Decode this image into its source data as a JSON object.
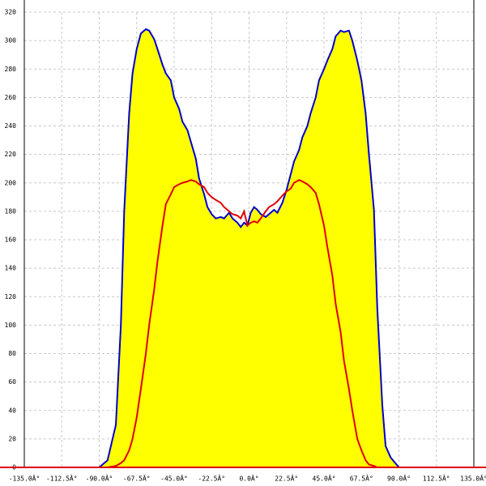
{
  "chart_data": {
    "type": "area-line",
    "x": [
      -90,
      -85,
      -80,
      -77,
      -75,
      -72,
      -70,
      -67.5,
      -65,
      -62,
      -60,
      -57,
      -55,
      -52,
      -50,
      -47,
      -45,
      -42,
      -40,
      -37,
      -35,
      -32,
      -30,
      -27,
      -25,
      -22.5,
      -20,
      -17,
      -15,
      -12,
      -10,
      -7,
      -5,
      -3,
      -1,
      1,
      3,
      5,
      7,
      10,
      12,
      15,
      17,
      20,
      22.5,
      25,
      27,
      30,
      32,
      35,
      37,
      40,
      42,
      45,
      47,
      50,
      52,
      55,
      57,
      60,
      62,
      65,
      67.5,
      70,
      72,
      75,
      77,
      80,
      82,
      85,
      90
    ],
    "series": [
      {
        "color": "#0000cc",
        "fill": "#ffff00",
        "values": [
          0,
          5,
          30,
          100,
          180,
          249,
          277,
          294,
          305,
          308,
          307,
          301,
          294,
          283,
          277,
          272,
          260,
          252,
          243,
          237,
          229,
          217,
          203,
          192,
          183,
          178,
          175,
          176,
          175,
          179,
          175,
          172,
          169,
          172,
          170,
          179,
          183,
          181,
          178,
          176,
          178,
          181,
          179,
          186,
          195,
          206,
          215,
          223,
          232,
          240,
          249,
          260,
          272,
          280,
          286,
          294,
          303,
          307,
          306,
          307,
          300,
          286,
          272,
          249,
          220,
          181,
          112,
          44,
          15,
          7,
          0
        ]
      },
      {
        "color": "#e00000",
        "values": [
          0,
          0,
          1,
          3,
          5,
          12,
          20,
          35,
          55,
          80,
          100,
          125,
          145,
          170,
          185,
          192,
          197,
          199,
          200,
          201,
          202,
          201,
          199,
          197,
          193,
          190,
          188,
          186,
          183,
          180,
          178,
          177,
          175,
          180,
          170,
          172,
          173,
          172,
          175,
          180,
          183,
          185,
          187,
          191,
          194,
          196,
          200,
          202,
          201,
          199,
          197,
          193,
          185,
          170,
          155,
          135,
          115,
          95,
          75,
          55,
          40,
          20,
          12,
          5,
          2,
          1,
          0,
          0,
          0,
          0,
          0
        ]
      }
    ],
    "xlim": [
      -135,
      135
    ],
    "xticks": [
      {
        "value": -135,
        "label": "-135.0Â°"
      },
      {
        "value": -112.5,
        "label": "-112.5Â°"
      },
      {
        "value": -90,
        "label": "-90.0Â°"
      },
      {
        "value": -67.5,
        "label": "-67.5Â°"
      },
      {
        "value": -45,
        "label": "-45.0Â°"
      },
      {
        "value": -22.5,
        "label": "-22.5Â°"
      },
      {
        "value": 0,
        "label": "0.0Â°"
      },
      {
        "value": 22.5,
        "label": "22.5Â°"
      },
      {
        "value": 45,
        "label": "45.0Â°"
      },
      {
        "value": 67.5,
        "label": "67.5Â°"
      },
      {
        "value": 90,
        "label": "90.0Â°"
      },
      {
        "value": 112.5,
        "label": "112.5Â°"
      },
      {
        "value": 135,
        "label": "135.0Â°"
      }
    ],
    "ylim": [
      0,
      320
    ],
    "yticks": [
      0,
      20,
      40,
      60,
      80,
      100,
      120,
      140,
      160,
      180,
      200,
      220,
      240,
      260,
      280,
      300,
      320
    ],
    "grid": true
  }
}
